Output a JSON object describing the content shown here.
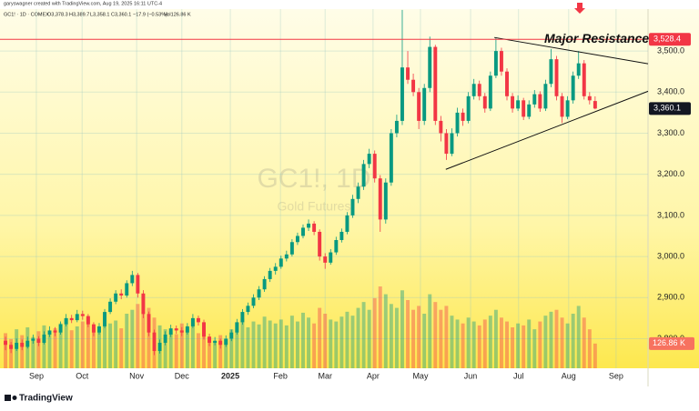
{
  "header": {
    "credit": "garyswagner created with TradingView.com, Aug 19, 2025 16:11 UTC-4",
    "symbol": "GC1! · 1D · COMEX",
    "ohlc": [
      "O3,378.3",
      "H3,389.7",
      "L3,358.1",
      "C3,360.1"
    ],
    "change": "−17.9 (−0.53%)",
    "volume": "Vol126.86 K"
  },
  "footer": {
    "brand": "TradingView"
  },
  "chart_data": {
    "type": "candlestick",
    "watermark_title": "GC1!, 1D",
    "watermark_subtitle": "Gold Futures",
    "x": [
      0,
      1,
      2,
      3,
      4,
      5,
      6,
      7,
      8,
      9,
      10,
      11,
      12,
      13,
      14,
      15,
      16,
      17,
      18,
      19,
      20,
      21,
      22,
      23,
      24,
      25,
      26,
      27,
      28,
      29,
      30,
      31,
      32,
      33,
      34,
      35,
      36,
      37,
      38,
      39,
      40,
      41,
      42,
      43,
      44,
      45,
      46,
      47,
      48,
      49,
      50,
      51,
      52,
      53,
      54,
      55,
      56,
      57,
      58,
      59,
      60,
      61,
      62,
      63,
      64,
      65,
      66,
      67,
      68,
      69,
      70,
      71,
      72,
      73,
      74,
      75,
      76,
      77,
      78,
      79,
      80,
      81,
      82,
      83,
      84,
      85,
      86,
      87,
      88,
      89,
      90,
      91,
      92,
      93,
      94,
      95,
      96,
      97,
      98,
      99,
      100,
      101,
      102,
      103,
      104,
      105,
      106,
      107
    ],
    "open": [
      2795,
      2785,
      2775,
      2790,
      2780,
      2795,
      2800,
      2790,
      2810,
      2820,
      2815,
      2835,
      2850,
      2845,
      2860,
      2855,
      2835,
      2815,
      2830,
      2865,
      2890,
      2910,
      2905,
      2935,
      2955,
      2910,
      2860,
      2815,
      2770,
      2790,
      2810,
      2825,
      2820,
      2815,
      2830,
      2850,
      2840,
      2805,
      2790,
      2795,
      2785,
      2800,
      2815,
      2840,
      2865,
      2880,
      2900,
      2920,
      2945,
      2965,
      2975,
      2995,
      3005,
      3035,
      3050,
      3070,
      3080,
      3060,
      3000,
      2985,
      3010,
      3040,
      3060,
      3100,
      3140,
      3170,
      3225,
      3250,
      3190,
      3090,
      3180,
      3300,
      3330,
      3460,
      3430,
      3400,
      3330,
      3410,
      3510,
      3330,
      3300,
      3250,
      3300,
      3350,
      3330,
      3390,
      3420,
      3390,
      3360,
      3440,
      3500,
      3450,
      3390,
      3360,
      3380,
      3340,
      3370,
      3395,
      3360,
      3420,
      3480,
      3390,
      3340,
      3380,
      3440,
      3470,
      3390,
      3378.3
    ],
    "high": [
      2805,
      2792,
      2800,
      2798,
      2805,
      2810,
      2806,
      2818,
      2830,
      2828,
      2842,
      2860,
      2858,
      2870,
      2868,
      2860,
      2840,
      2838,
      2872,
      2898,
      2918,
      2920,
      2942,
      2965,
      2960,
      2918,
      2866,
      2822,
      2798,
      2818,
      2834,
      2832,
      2828,
      2838,
      2860,
      2856,
      2846,
      2812,
      2804,
      2800,
      2808,
      2822,
      2848,
      2872,
      2888,
      2908,
      2928,
      2952,
      2972,
      2984,
      3002,
      3014,
      3042,
      3058,
      3078,
      3090,
      3086,
      3066,
      3008,
      3018,
      3048,
      3068,
      3108,
      3150,
      3180,
      3235,
      3262,
      3258,
      3198,
      3190,
      3310,
      3345,
      3600,
      3500,
      3445,
      3410,
      3420,
      3535,
      3515,
      3342,
      3310,
      3312,
      3362,
      3360,
      3400,
      3432,
      3428,
      3398,
      3450,
      3532,
      3508,
      3458,
      3398,
      3392,
      3386,
      3380,
      3405,
      3402,
      3430,
      3505,
      3488,
      3398,
      3390,
      3450,
      3500,
      3478,
      3400,
      3389.7
    ],
    "low": [
      2772,
      2765,
      2770,
      2772,
      2776,
      2788,
      2782,
      2786,
      2804,
      2806,
      2810,
      2830,
      2838,
      2840,
      2846,
      2828,
      2806,
      2810,
      2826,
      2860,
      2884,
      2896,
      2900,
      2928,
      2900,
      2850,
      2806,
      2760,
      2764,
      2784,
      2804,
      2812,
      2806,
      2810,
      2826,
      2832,
      2798,
      2782,
      2784,
      2776,
      2780,
      2794,
      2810,
      2834,
      2858,
      2874,
      2894,
      2914,
      2938,
      2956,
      2970,
      2988,
      3000,
      3028,
      3044,
      3062,
      3052,
      2990,
      2970,
      2980,
      3004,
      3034,
      3054,
      3094,
      3130,
      3162,
      3215,
      3180,
      3060,
      3080,
      3172,
      3290,
      3320,
      3420,
      3390,
      3310,
      3320,
      3400,
      3320,
      3280,
      3235,
      3244,
      3292,
      3318,
      3324,
      3382,
      3380,
      3350,
      3354,
      3434,
      3440,
      3380,
      3350,
      3354,
      3332,
      3334,
      3362,
      3352,
      3354,
      3412,
      3380,
      3325,
      3334,
      3372,
      3432,
      3382,
      3370,
      3358.1
    ],
    "close": [
      2785,
      2775,
      2790,
      2780,
      2795,
      2800,
      2790,
      2810,
      2820,
      2815,
      2835,
      2850,
      2845,
      2860,
      2855,
      2835,
      2815,
      2830,
      2865,
      2890,
      2910,
      2905,
      2935,
      2955,
      2910,
      2860,
      2815,
      2770,
      2790,
      2810,
      2825,
      2820,
      2815,
      2830,
      2850,
      2840,
      2805,
      2790,
      2795,
      2785,
      2800,
      2815,
      2840,
      2865,
      2880,
      2900,
      2920,
      2945,
      2965,
      2975,
      2995,
      3005,
      3035,
      3050,
      3070,
      3080,
      3060,
      3000,
      2985,
      3010,
      3040,
      3060,
      3100,
      3140,
      3170,
      3225,
      3250,
      3190,
      3090,
      3180,
      3300,
      3330,
      3460,
      3430,
      3400,
      3330,
      3410,
      3510,
      3330,
      3300,
      3250,
      3300,
      3350,
      3330,
      3390,
      3420,
      3390,
      3360,
      3440,
      3500,
      3450,
      3390,
      3360,
      3380,
      3340,
      3370,
      3395,
      3360,
      3420,
      3480,
      3390,
      3340,
      3380,
      3440,
      3470,
      3390,
      3380,
      3360.1
    ],
    "volume": [
      180000,
      150000,
      200000,
      170000,
      210000,
      160000,
      190000,
      220000,
      175000,
      205000,
      230000,
      250000,
      195000,
      215000,
      240000,
      260000,
      210000,
      185000,
      270000,
      230000,
      245000,
      205000,
      280000,
      300000,
      330000,
      290000,
      310000,
      260000,
      220000,
      200000,
      190000,
      175000,
      230000,
      205000,
      250000,
      180000,
      215000,
      160000,
      140000,
      170000,
      150000,
      200000,
      235000,
      255000,
      210000,
      240000,
      225000,
      265000,
      245000,
      230000,
      250000,
      220000,
      270000,
      240000,
      285000,
      260000,
      230000,
      310000,
      280000,
      250000,
      240000,
      265000,
      290000,
      270000,
      310000,
      340000,
      300000,
      360000,
      420000,
      380000,
      330000,
      310000,
      400000,
      350000,
      300000,
      320000,
      280000,
      380000,
      340000,
      300000,
      320000,
      270000,
      250000,
      230000,
      260000,
      240000,
      220000,
      250000,
      270000,
      300000,
      260000,
      240000,
      210000,
      230000,
      220000,
      250000,
      200000,
      240000,
      270000,
      290000,
      300000,
      260000,
      230000,
      280000,
      320000,
      260000,
      200000,
      126860
    ],
    "last_price_label": "3,360.1",
    "last_volume_label": "126.86 K",
    "up_color": "#089981",
    "down_color": "#f23645",
    "xlim": [
      -1,
      116.6
    ],
    "ylim": [
      2728,
      3602
    ],
    "vlim": [
      0,
      490000
    ],
    "xticks": [
      {
        "value": 5.6,
        "label": "Sep"
      },
      {
        "value": 13.9,
        "label": "Oct"
      },
      {
        "value": 23.8,
        "label": "Nov"
      },
      {
        "value": 32,
        "label": "Dec"
      },
      {
        "value": 40.8,
        "label": "2025"
      },
      {
        "value": 49.9,
        "label": "Feb"
      },
      {
        "value": 58,
        "label": "Mar"
      },
      {
        "value": 66.7,
        "label": "Apr"
      },
      {
        "value": 75.3,
        "label": "May"
      },
      {
        "value": 84.4,
        "label": "Jun"
      },
      {
        "value": 93.1,
        "label": "Jul"
      },
      {
        "value": 102.2,
        "label": "Aug"
      },
      {
        "value": 110.8,
        "label": "Sep"
      }
    ],
    "yticks": [
      {
        "value": 2800,
        "label": "2,800.0"
      },
      {
        "value": 2900,
        "label": "2,900.0"
      },
      {
        "value": 3000,
        "label": "3,000.0"
      },
      {
        "value": 3100,
        "label": "3,100.0"
      },
      {
        "value": 3200,
        "label": "3,200.0"
      },
      {
        "value": 3300,
        "label": "3,300.0"
      },
      {
        "value": 3400,
        "label": "3,400.0"
      },
      {
        "value": 3500,
        "label": "3,500.0"
      }
    ],
    "grid": true,
    "resistance": {
      "value": 3528.4,
      "label": "3,528.4",
      "text": "Major Resistance",
      "color": "#f23645"
    },
    "trendlines": [
      {
        "x": [
          88.7,
          116.6
        ],
        "y": [
          3533,
          3469
        ]
      },
      {
        "x": [
          79.9,
          116.6
        ],
        "y": [
          3212,
          3402
        ]
      }
    ]
  }
}
